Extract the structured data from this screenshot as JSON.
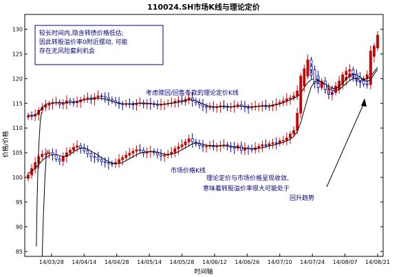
{
  "chart_data": {
    "type": "candlestick",
    "title": "110024.SH市场K线与理论定价",
    "xlabel": "时间轴",
    "ylabel": "价格/价格",
    "ylim": [
      84,
      133
    ],
    "y_ticks": [
      85,
      90,
      95,
      100,
      105,
      110,
      115,
      120,
      125,
      130
    ],
    "x_tick_labels": [
      "14/03/28",
      "14/04/14",
      "14/04/28",
      "14/05/14",
      "14/05/28",
      "14/06/12",
      "14/06/26",
      "14/07/10",
      "14/07/24",
      "14/08/07",
      "14/08/21"
    ],
    "bullish_color": "#cc0000",
    "bearish_color": "#0000a0",
    "line_color": "#000000",
    "annotation_color": "#000080",
    "annotations": {
      "box_lines": [
        "较长时间内,隐含转债价格低估;",
        "因此转股溢价率0附近摆动, 可能",
        "存在无风险套利机会"
      ],
      "theory_label": "考虑赎回/回售条款的理论定价K线",
      "market_label": "市场价格K线",
      "arrow_lines": [
        "理论定价与市场价格呈现收敛,",
        "意味着转股溢价率很大可能处于",
        "回升趋势"
      ]
    },
    "series": [
      {
        "name": "理论定价K线",
        "kind": "candles",
        "x": [
          0,
          1.5,
          3,
          4.5,
          6,
          7.5,
          9,
          10.5,
          12,
          13.5,
          15,
          16.5,
          18,
          19.5,
          21,
          22.5,
          24,
          25.5,
          27,
          28.5,
          30,
          31.5,
          33,
          34.5,
          36,
          37.5,
          39,
          40.5,
          42,
          43.5,
          45,
          46.5,
          48,
          49.5,
          51,
          52.5,
          54,
          55.5,
          57,
          58.5,
          60,
          61.5,
          63,
          64.5,
          66,
          67.5,
          69,
          70.5,
          72,
          73.5,
          75,
          76.5,
          78,
          79.5,
          81,
          82.5,
          84,
          85.5,
          87,
          88.5,
          90,
          91.5,
          93,
          94.5,
          96,
          97.5,
          99,
          100.5,
          102,
          103.5,
          105,
          106.5,
          108,
          109.5,
          111,
          112.5,
          114,
          115.5,
          117,
          118.5,
          120,
          121.5,
          123,
          124.5,
          126,
          127.5,
          129,
          130.5,
          132,
          133.5,
          135,
          136.5,
          138,
          139.5,
          141,
          142.5,
          144,
          145.5,
          147,
          148.5,
          150
        ],
        "open": [
          112.2,
          112.5,
          112.4,
          112.7,
          113.6,
          114.2,
          114.6,
          114.9,
          115.1,
          115.2,
          114.8,
          115,
          115.5,
          115.2,
          115.1,
          115.3,
          115.7,
          115.9,
          116.1,
          115.8,
          116.2,
          116.5,
          116.4,
          116.1,
          115.8,
          115.5,
          115.2,
          114.9,
          114.8,
          114.9,
          114.8,
          114.7,
          115,
          115.1,
          114.8,
          115,
          114.9,
          114.8,
          114.6,
          114.8,
          114.9,
          115,
          115.1,
          115.4,
          115.6,
          115.3,
          115.8,
          116.1,
          115.5,
          115.1,
          114.8,
          114.4,
          114.2,
          114.3,
          114.1,
          114.3,
          114.5,
          114.4,
          114.2,
          114.3,
          114.5,
          114.7,
          114.4,
          114.2,
          114.1,
          114.3,
          114.4,
          114.5,
          114.6,
          114.3,
          114.4,
          114.7,
          114.9,
          115.2,
          115.5,
          115.9,
          116.1,
          116.5,
          117.5,
          120.5,
          122,
          123.8,
          120.7,
          120.5,
          119,
          118.5,
          117.8,
          116.8,
          117.2,
          117.8,
          118.8,
          119.8,
          120.3,
          121,
          120.2,
          119.5,
          119.3,
          120,
          120.8,
          124.5,
          126.6
        ],
        "close": [
          112.5,
          112.4,
          112.7,
          113.6,
          114.2,
          114.6,
          114.9,
          115.1,
          115.2,
          114.8,
          115,
          115.5,
          115.2,
          115.1,
          115.3,
          115.7,
          115.9,
          116.1,
          115.8,
          116.2,
          116.5,
          116.4,
          116.1,
          115.8,
          115.5,
          115.2,
          114.9,
          114.8,
          114.9,
          114.8,
          114.7,
          115,
          115.1,
          114.8,
          115,
          114.9,
          114.8,
          114.6,
          114.8,
          114.9,
          115,
          115.1,
          115.4,
          115.6,
          115.3,
          115.8,
          116.1,
          115.5,
          115.1,
          114.8,
          114.4,
          114.2,
          114.3,
          114.1,
          114.3,
          114.5,
          114.4,
          114.2,
          114.3,
          114.5,
          114.7,
          114.4,
          114.2,
          114.1,
          114.3,
          114.4,
          114.5,
          114.6,
          114.3,
          114.4,
          114.7,
          114.9,
          115.2,
          115.5,
          115.9,
          116.1,
          116.5,
          117.5,
          120.5,
          122,
          123.8,
          120.7,
          120.5,
          119,
          118.5,
          117.8,
          116.8,
          117.2,
          117.8,
          118.8,
          119.8,
          120.3,
          121,
          120.2,
          119.5,
          119.3,
          120,
          120.8,
          124.5,
          126.6,
          126.4
        ],
        "ma_y": [
          112.6,
          112.5,
          112.6,
          113.2,
          114.1,
          114.8,
          115,
          115.1,
          115.1,
          115.1,
          115.1,
          115.1,
          115.2,
          115.3,
          115.4,
          115.5,
          115.7,
          115.8,
          115.9,
          116,
          116,
          116,
          115.8,
          115.6,
          115.4,
          115.2,
          115,
          114.9,
          114.9,
          114.9,
          114.9,
          115,
          115,
          115,
          115,
          114.9,
          114.9,
          114.8,
          114.8,
          114.8,
          114.9,
          115,
          115.1,
          115.2,
          115.4,
          115.6,
          115.7,
          115.7,
          115.5,
          115.2,
          114.9,
          114.6,
          114.4,
          114.3,
          114.3,
          114.3,
          114.3,
          114.3,
          114.3,
          114.3,
          114.4,
          114.4,
          114.4,
          114.3,
          114.3,
          114.3,
          114.4,
          114.4,
          114.5,
          114.5,
          114.6,
          114.7,
          114.9,
          115.1,
          115.4,
          115.7,
          116,
          116.4,
          117,
          118.2,
          119.2,
          119.8,
          120,
          119.7,
          119.2,
          118.7,
          118.1,
          117.6,
          117.5,
          117.8,
          118.4,
          119,
          119.6,
          120,
          120,
          119.8,
          119.8,
          120,
          120.4,
          121.4,
          122.3
        ]
      },
      {
        "name": "市场价格K线",
        "kind": "candles",
        "x": [
          0,
          1.5,
          3,
          4.5,
          6,
          7.5,
          9,
          10.5,
          12,
          13.5,
          15,
          16.5,
          18,
          19.5,
          21,
          22.5,
          24,
          25.5,
          27,
          28.5,
          30,
          31.5,
          33,
          34.5,
          36,
          37.5,
          39,
          40.5,
          42,
          43.5,
          45,
          46.5,
          48,
          49.5,
          51,
          52.5,
          54,
          55.5,
          57,
          58.5,
          60,
          61.5,
          63,
          64.5,
          66,
          67.5,
          69,
          70.5,
          72,
          73.5,
          75,
          76.5,
          78,
          79.5,
          81,
          82.5,
          84,
          85.5,
          87,
          88.5,
          90,
          91.5,
          93,
          94.5,
          96,
          97.5,
          99,
          100.5,
          102,
          103.5,
          105,
          106.5,
          108,
          109.5,
          111,
          112.5,
          114,
          115.5,
          117,
          118.5,
          120,
          121.5,
          123,
          124.5,
          126,
          127.5,
          129,
          130.5,
          132,
          133.5,
          135,
          136.5,
          138,
          139.5,
          141,
          142.5,
          144,
          145.5,
          147,
          148.5,
          150
        ],
        "open": [
          99.8,
          100.5,
          101.8,
          103,
          104.2,
          104.7,
          104.8,
          105,
          104.6,
          103.7,
          103.3,
          104.2,
          105,
          105.5,
          106.1,
          106.4,
          106,
          105.4,
          104.8,
          104.2,
          104.1,
          103.6,
          103.2,
          103,
          102.8,
          102.7,
          103,
          103.6,
          104,
          104.5,
          104.9,
          105.3,
          105.6,
          105.5,
          104.9,
          105.2,
          105.3,
          105,
          104.6,
          104.3,
          104.5,
          104.7,
          105.1,
          105.8,
          106.2,
          106.6,
          107.2,
          107.8,
          107.2,
          106.8,
          106.5,
          106.2,
          106.3,
          106.5,
          106.2,
          106.4,
          106.5,
          106.6,
          106.3,
          106.1,
          105.9,
          106.4,
          105.5,
          106,
          105.8,
          105.6,
          106,
          106.3,
          106.6,
          106.5,
          106.8,
          107,
          106.9,
          107.4,
          107.5,
          108,
          108.8,
          109.5,
          113,
          118.5,
          120.5,
          122.5,
          121.8,
          119,
          118.2,
          119.5,
          117.8,
          118,
          117.6,
          118.5,
          119.5,
          120.8,
          121.5,
          121.8,
          121,
          120.2,
          119.6,
          118.9,
          118.8,
          125.6,
          126.2
        ],
        "close": [
          100.5,
          101.8,
          103,
          104.2,
          104.7,
          104.8,
          105,
          104.6,
          103.7,
          103.3,
          104.2,
          105,
          105.5,
          106.1,
          106.4,
          106,
          105.4,
          104.8,
          104.2,
          104.1,
          103.6,
          103.2,
          103,
          102.8,
          102.7,
          103,
          103.6,
          104,
          104.5,
          104.9,
          105.3,
          105.6,
          105.5,
          104.9,
          105.2,
          105.3,
          105,
          104.6,
          104.3,
          104.5,
          104.7,
          105.1,
          105.8,
          106.2,
          106.6,
          107.2,
          107.8,
          107.2,
          106.8,
          106.5,
          106.2,
          106.3,
          106.5,
          106.2,
          106.4,
          106.5,
          106.6,
          106.3,
          106.1,
          105.9,
          106.4,
          105.5,
          106,
          105.8,
          105.6,
          106,
          106.3,
          106.6,
          106.5,
          106.8,
          107,
          106.9,
          107.4,
          107.5,
          108,
          108.8,
          109.5,
          113,
          118.5,
          120.5,
          122.5,
          121.8,
          119,
          118.2,
          119.5,
          117.8,
          118,
          117.6,
          118.5,
          119.5,
          120.8,
          121.5,
          121.8,
          121,
          120.2,
          119.6,
          118.9,
          118.8,
          125.6,
          126.2,
          128.8
        ],
        "ma_y": [
          100.8,
          101.2,
          101.8,
          102.6,
          103.4,
          104,
          104.4,
          104.6,
          104.6,
          104.4,
          104.2,
          104.3,
          104.7,
          105.2,
          105.6,
          105.9,
          105.9,
          105.7,
          105.3,
          104.9,
          104.5,
          104,
          103.6,
          103.2,
          102.9,
          102.8,
          102.8,
          103,
          103.4,
          103.8,
          104.2,
          104.6,
          104.9,
          105.1,
          105.2,
          105.2,
          105.2,
          105.1,
          104.9,
          104.7,
          104.6,
          104.7,
          104.9,
          105.2,
          105.6,
          106,
          106.4,
          106.8,
          107,
          106.9,
          106.7,
          106.5,
          106.4,
          106.4,
          106.4,
          106.4,
          106.4,
          106.4,
          106.3,
          106.2,
          106.1,
          106,
          105.9,
          105.8,
          105.8,
          105.8,
          105.9,
          106,
          106.2,
          106.4,
          106.5,
          106.7,
          106.9,
          107.1,
          107.4,
          107.7,
          108.3,
          109.3,
          111.1,
          113.6,
          116.1,
          118.3,
          119.4,
          119.6,
          119.3,
          118.9,
          118.5,
          118.1,
          118,
          118.4,
          119.1,
          119.9,
          120.6,
          120.9,
          120.7,
          120.3,
          119.8,
          119.4,
          119.8,
          120.9,
          121.9
        ]
      },
      {
        "name": "connector",
        "kind": "line",
        "x": [
          3.5,
          3.8,
          4.3,
          4.8,
          5.2,
          5.8
        ],
        "y": [
          86,
          95,
          104,
          108.5,
          111.5,
          113.2
        ]
      },
      {
        "name": "connector-2",
        "kind": "line",
        "x": [
          6,
          6.5,
          7.2,
          7.7,
          8.4
        ],
        "y": [
          84,
          92,
          100,
          104,
          105.5
        ]
      }
    ]
  }
}
